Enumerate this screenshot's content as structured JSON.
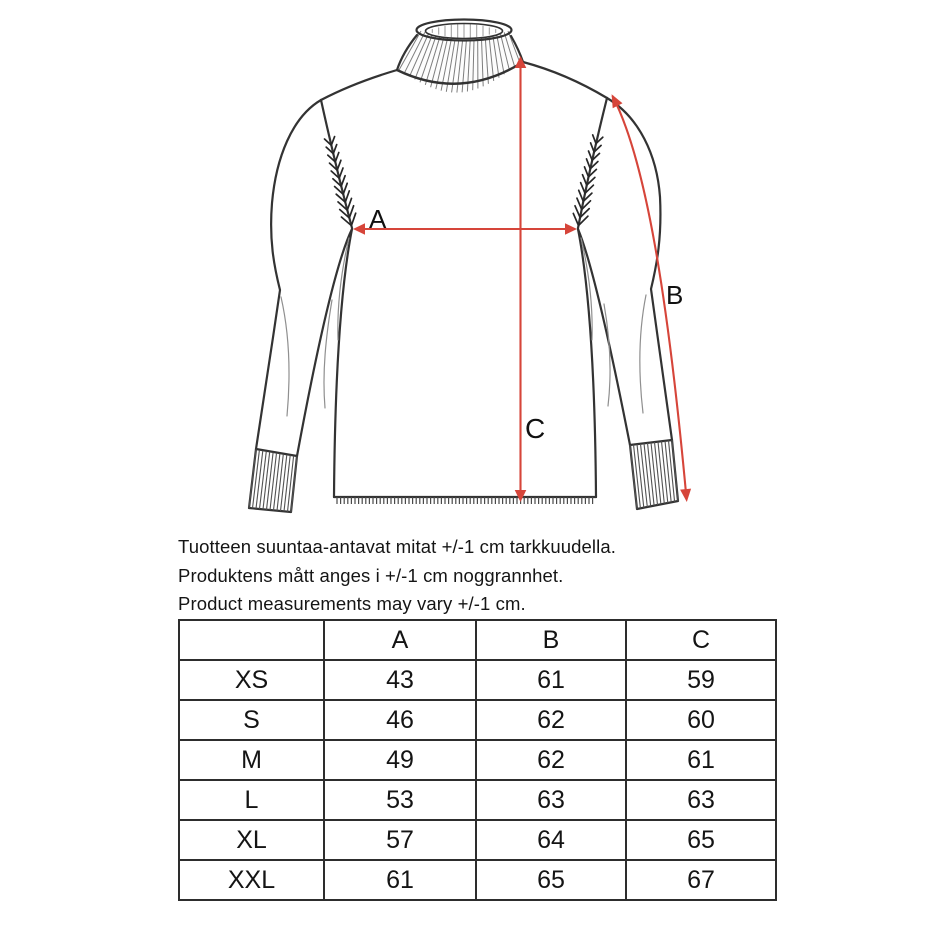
{
  "colors": {
    "arrow_red": "#d6453a",
    "ink": "#333333",
    "text_ink": "#151515",
    "table_line": "#2d2d2d"
  },
  "diagram": {
    "labels": {
      "a": "A",
      "b": "B",
      "c": "C"
    }
  },
  "notes": {
    "fi": "Tuotteen suuntaa-antavat mitat +/-1 cm tarkkuudella.",
    "sv": "Produktens mått anges i +/-1 cm noggrannhet.",
    "en": "Product measurements may vary +/-1 cm."
  },
  "size_table": {
    "headers": {
      "size": "",
      "a": "A",
      "b": "B",
      "c": "C"
    },
    "rows": [
      {
        "size": "XS",
        "a": "43",
        "b": "61",
        "c": "59"
      },
      {
        "size": "S",
        "a": "46",
        "b": "62",
        "c": "60"
      },
      {
        "size": "M",
        "a": "49",
        "b": "62",
        "c": "61"
      },
      {
        "size": "L",
        "a": "53",
        "b": "63",
        "c": "63"
      },
      {
        "size": "XL",
        "a": "57",
        "b": "64",
        "c": "65"
      },
      {
        "size": "XXL",
        "a": "61",
        "b": "65",
        "c": "67"
      }
    ]
  }
}
